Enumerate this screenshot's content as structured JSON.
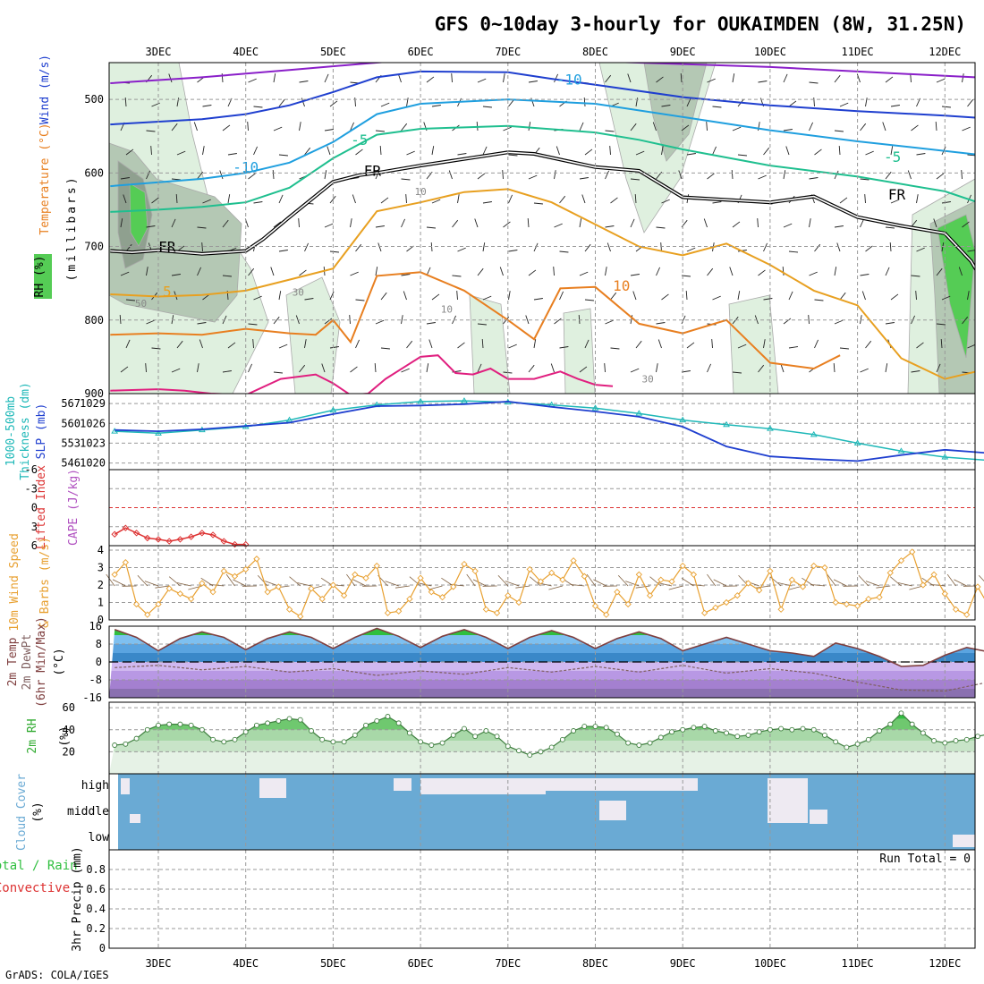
{
  "title": "GFS 0~10day 3-hourly for OUKAIMDEN (8W, 31.25N)",
  "footer": "GrADS: COLA/IGES",
  "colors": {
    "rh_light": "#dff0df",
    "rh_mid": "#b4c8b4",
    "rh_dark": "#8fa08f",
    "rh_green": "#55cc55",
    "temp_lines": [
      "#8a1fc9",
      "#1f3fcf",
      "#1f9fdf",
      "#1fbf8f",
      "#000000",
      "#e8a020",
      "#e87f20",
      "#e01f7f"
    ],
    "slp": "#1f3fcf",
    "thickness": "#1fb8b8",
    "lifted_index": "#dd3333",
    "wind": "#e8a030",
    "temp": "#7f3f3f",
    "dewpt": "#7f5f5f",
    "rh2m": "#2faa2f",
    "cloud": "#6aaad4"
  },
  "dates": [
    "3DEC",
    "4DEC",
    "5DEC",
    "6DEC",
    "7DEC",
    "8DEC",
    "9DEC",
    "10DEC",
    "11DEC",
    "12DEC"
  ],
  "chart_data": [
    {
      "type": "line",
      "name": "upper_air",
      "ylabels": [
        "Wind (m/s)",
        "Temperature (°C)",
        "RH (%)",
        "(millibars)"
      ],
      "ylim": [
        900,
        450
      ],
      "yticks": [
        500,
        600,
        700,
        800,
        900
      ],
      "annotations": [
        {
          "text": "-10",
          "x": 1.0,
          "y": 599
        },
        {
          "text": "-10",
          "x": 4.7,
          "y": 480
        },
        {
          "text": "-5",
          "x": 2.3,
          "y": 562
        },
        {
          "text": "-5",
          "x": 8.4,
          "y": 585
        },
        {
          "text": "FR",
          "x": 0.1,
          "y": 707
        },
        {
          "text": "FR",
          "x": 2.45,
          "y": 604
        },
        {
          "text": "FR",
          "x": 8.45,
          "y": 636
        },
        {
          "text": "5",
          "x": 0.1,
          "y": 768
        },
        {
          "text": "10",
          "x": 5.3,
          "y": 760
        },
        {
          "text": "50",
          "x": -0.2,
          "y": 782
        },
        {
          "text": "30",
          "x": 1.6,
          "y": 767
        },
        {
          "text": "10",
          "x": 3.3,
          "y": 790
        },
        {
          "text": "10",
          "x": 3.0,
          "y": 630
        },
        {
          "text": "30",
          "x": 5.6,
          "y": 885
        }
      ],
      "series": [
        {
          "x": [
            -0.55,
            0.5,
            1.5,
            2.3,
            3.0,
            4.0,
            5.0,
            6.0,
            7.0,
            8.0,
            9.0,
            9.75
          ],
          "y": [
            478,
            470,
            460,
            452,
            445,
            444,
            448,
            452,
            456,
            462,
            468,
            472
          ]
        },
        {
          "x": [
            -0.55,
            0.5,
            1.0,
            1.5,
            2.0,
            2.5,
            3.0,
            4.0,
            4.5,
            5.0,
            6.0,
            7.0,
            8.0,
            9.0,
            9.75
          ],
          "y": [
            534,
            527,
            520,
            508,
            490,
            470,
            462,
            463,
            472,
            480,
            497,
            508,
            516,
            522,
            528
          ]
        },
        {
          "x": [
            -0.55,
            0.5,
            1.0,
            1.5,
            2.0,
            2.5,
            3.0,
            4.0,
            5.0,
            6.0,
            7.0,
            8.0,
            9.0,
            9.75
          ],
          "y": [
            618,
            608,
            600,
            586,
            558,
            520,
            506,
            500,
            506,
            524,
            542,
            557,
            570,
            580
          ]
        },
        {
          "x": [
            -0.55,
            0.0,
            0.5,
            1.0,
            1.5,
            2.0,
            2.5,
            3.0,
            4.0,
            5.0,
            5.5,
            6.0,
            7.0,
            8.0,
            9.0,
            9.5,
            9.75
          ],
          "y": [
            653,
            650,
            646,
            640,
            620,
            580,
            548,
            540,
            536,
            545,
            555,
            568,
            590,
            605,
            625,
            645,
            670
          ]
        },
        {
          "x": [
            -0.55,
            -0.3,
            0.0,
            0.5,
            1.0,
            1.2,
            1.5,
            2.0,
            2.3,
            2.5,
            3.0,
            4.0,
            4.3,
            5.0,
            5.5,
            6.0,
            7.0,
            7.5,
            8.0,
            8.5,
            9.0,
            9.3,
            9.5,
            9.7,
            9.75
          ],
          "y": [
            706,
            708,
            705,
            710,
            706,
            690,
            660,
            612,
            603,
            600,
            590,
            572,
            574,
            592,
            597,
            633,
            640,
            632,
            660,
            672,
            682,
            720,
            760,
            785,
            790
          ]
        },
        {
          "x": [
            -0.55,
            0.0,
            0.5,
            1.0,
            1.5,
            2.0,
            2.5,
            3.0,
            3.5,
            4.0,
            4.5,
            5.0,
            5.5,
            6.0,
            6.5,
            7.0,
            7.5,
            8.0,
            8.5,
            9.0,
            9.5,
            9.75
          ],
          "y": [
            765,
            768,
            766,
            760,
            745,
            730,
            652,
            640,
            626,
            622,
            640,
            670,
            700,
            712,
            696,
            725,
            760,
            780,
            852,
            880,
            866,
            858
          ]
        },
        {
          "x": [
            -0.55,
            0.0,
            0.5,
            1.0,
            1.5,
            1.8,
            2.0,
            2.2,
            2.5,
            3.0,
            3.5,
            4.0,
            4.3,
            4.6,
            5.0,
            5.5,
            6.0,
            6.5,
            7.0,
            7.5,
            7.8
          ],
          "y": [
            820,
            818,
            820,
            812,
            818,
            820,
            800,
            830,
            740,
            735,
            760,
            800,
            826,
            757,
            755,
            805,
            818,
            800,
            858,
            866,
            848
          ]
        },
        {
          "x": [
            -0.55,
            0.0,
            0.3,
            0.6,
            1.0,
            1.4,
            1.8,
            2.0,
            2.2,
            2.4,
            2.6,
            2.8,
            3.0,
            3.2,
            3.4,
            3.6,
            3.8,
            4.0,
            4.3,
            4.6,
            4.8,
            5.0,
            5.2
          ],
          "y": [
            896,
            894,
            896,
            900,
            902,
            880,
            874,
            886,
            902,
            900,
            880,
            865,
            850,
            848,
            872,
            874,
            866,
            880,
            880,
            870,
            880,
            888,
            890
          ]
        }
      ]
    },
    {
      "type": "line",
      "name": "slp_thickness",
      "ylabels": [
        "1000-500mb Thickness (dm)",
        "SLP (mb)"
      ],
      "left_ticks": [
        546,
        553,
        560,
        567
      ],
      "right_ticks": [
        1020,
        1023,
        1026,
        1029
      ],
      "ylim": [
        1019,
        1030.5
      ],
      "series": [
        {
          "name": "SLP",
          "x": [
            -0.5,
            0.0,
            0.5,
            1.0,
            1.5,
            2.0,
            2.5,
            3.0,
            3.5,
            4.0,
            4.5,
            5.0,
            5.5,
            6.0,
            6.5,
            7.0,
            7.5,
            8.0,
            8.5,
            9.0,
            9.5,
            9.75
          ],
          "y": [
            1025.0,
            1024.8,
            1025.1,
            1025.6,
            1026.1,
            1027.4,
            1028.6,
            1028.7,
            1028.9,
            1029.3,
            1028.5,
            1027.8,
            1027.0,
            1025.5,
            1022.5,
            1021.0,
            1020.6,
            1020.3,
            1021.2,
            1022.0,
            1021.5,
            1021.1
          ]
        },
        {
          "name": "Thickness",
          "x": [
            -0.5,
            0.0,
            0.5,
            1.0,
            1.5,
            2.0,
            2.5,
            3.0,
            3.5,
            4.0,
            4.5,
            5.0,
            5.5,
            6.0,
            6.5,
            7.0,
            7.5,
            8.0,
            8.5,
            9.0,
            9.5,
            9.75
          ],
          "y": [
            1024.8,
            1024.5,
            1025.0,
            1025.5,
            1026.5,
            1028.0,
            1028.8,
            1029.3,
            1029.4,
            1029.2,
            1028.8,
            1028.3,
            1027.5,
            1026.5,
            1025.8,
            1025.2,
            1024.3,
            1023.0,
            1021.8,
            1020.9,
            1020.4,
            1020.0
          ]
        }
      ]
    },
    {
      "type": "line",
      "name": "stability",
      "ylabels": [
        "Lifted Index",
        "CAPE (J/kg)"
      ],
      "left_ticks": [
        -6,
        -3,
        0,
        3,
        6
      ],
      "ylim": [
        -6,
        6
      ],
      "series": [
        {
          "name": "Lifted Index",
          "x": [
            -0.5,
            -0.375,
            -0.25,
            -0.125,
            0.0,
            0.125,
            0.25,
            0.375,
            0.5,
            0.625,
            0.75,
            0.875,
            1.0
          ],
          "y": [
            4.2,
            3.2,
            4.0,
            4.8,
            5.0,
            5.3,
            5.0,
            4.6,
            4.0,
            4.3,
            5.3,
            5.8,
            5.8
          ]
        }
      ]
    },
    {
      "type": "line",
      "name": "wind10m",
      "ylabels": [
        "10m Wind Speed",
        "& Barbs (m/s)"
      ],
      "left_ticks": [
        0,
        1,
        2,
        3,
        4
      ],
      "ylim": [
        0,
        4
      ],
      "series": [
        {
          "name": "Wind speed",
          "x0": -0.5,
          "dx": 0.125,
          "y": [
            2.6,
            3.3,
            0.9,
            0.3,
            0.9,
            1.8,
            1.5,
            1.2,
            2.1,
            1.6,
            2.8,
            2.5,
            2.9,
            3.5,
            1.6,
            1.9,
            0.6,
            0.2,
            1.8,
            1.2,
            2.0,
            1.4,
            2.6,
            2.4,
            3.1,
            0.4,
            0.5,
            1.2,
            2.4,
            1.6,
            1.3,
            1.9,
            3.2,
            2.8,
            0.6,
            0.4,
            1.4,
            1.0,
            2.9,
            2.2,
            2.7,
            2.3,
            3.4,
            2.5,
            0.8,
            0.3,
            1.6,
            0.9,
            2.6,
            1.4,
            2.3,
            2.2,
            3.1,
            2.6,
            0.4,
            0.7,
            1.0,
            1.4,
            2.1,
            1.7,
            2.8,
            0.6,
            2.3,
            1.9,
            3.1,
            3.0,
            1.0,
            0.9,
            0.8,
            1.2,
            1.3,
            2.7,
            3.4,
            3.9,
            2.0,
            2.6,
            1.5,
            0.6,
            0.3,
            1.9,
            0.8,
            0.3,
            1.9,
            2.4,
            3.1,
            3.4,
            2.6,
            1.2,
            1.3,
            1.1,
            1.0,
            0.6,
            1.4,
            1.5,
            3.2,
            3.3,
            2.2,
            0.3,
            0.6,
            0.9,
            1.2,
            1.4,
            1.1,
            1.3,
            1.1,
            1.2,
            1.0,
            1.1,
            1.2
          ]
        }
      ]
    },
    {
      "type": "area",
      "name": "temp2m",
      "ylabels": [
        "2m Temp",
        "2m DewPt",
        "(6hr Min/Max)",
        "(°C)"
      ],
      "left_ticks": [
        -16,
        -8,
        0,
        8,
        16
      ],
      "ylim": [
        -16,
        16
      ],
      "series": [
        {
          "name": "Temperature",
          "x": [
            -0.5,
            -0.25,
            0.0,
            0.25,
            0.5,
            0.75,
            1.0,
            1.25,
            1.5,
            1.75,
            2.0,
            2.25,
            2.5,
            2.75,
            3.0,
            3.25,
            3.5,
            3.75,
            4.0,
            4.25,
            4.5,
            4.75,
            5.0,
            5.25,
            5.5,
            5.75,
            6.0,
            6.25,
            6.5,
            6.75,
            7.0,
            7.25,
            7.5,
            7.75,
            8.0,
            8.25,
            8.5,
            8.75,
            9.0,
            9.25,
            9.5,
            9.75
          ],
          "y": [
            14.5,
            11.0,
            5.0,
            10.5,
            13.5,
            11.0,
            5.5,
            10.5,
            13.5,
            11.0,
            6.0,
            11.0,
            15.0,
            11.5,
            6.5,
            11.5,
            14.5,
            11.0,
            6.0,
            11.0,
            14.0,
            11.0,
            6.0,
            10.5,
            13.5,
            10.5,
            5.0,
            8.0,
            11.0,
            8.0,
            5.0,
            4.0,
            2.5,
            8.5,
            6.0,
            2.5,
            -2.0,
            -1.5,
            3.0,
            6.5,
            4.5,
            1.5
          ]
        },
        {
          "name": "DewPt",
          "x": [
            -0.5,
            0.0,
            0.5,
            1.0,
            1.5,
            2.0,
            2.5,
            3.0,
            3.5,
            4.0,
            4.5,
            5.0,
            5.5,
            6.0,
            6.5,
            7.0,
            7.5,
            8.0,
            8.5,
            9.0,
            9.5,
            9.75
          ],
          "y": [
            -2.5,
            -1.5,
            -3.5,
            -2.0,
            -4.5,
            -3.0,
            -6.0,
            -4.0,
            -5.5,
            -2.5,
            -4.5,
            -2.0,
            -4.5,
            -1.5,
            -5.0,
            -3.0,
            -5.0,
            -9.0,
            -12.5,
            -13.0,
            -9.0,
            -5.0
          ]
        }
      ]
    },
    {
      "type": "area",
      "name": "rh2m",
      "ylabels": [
        "2m RH",
        "(%)"
      ],
      "left_ticks": [
        20,
        40,
        60
      ],
      "ylim": [
        0,
        65
      ],
      "series": [
        {
          "name": "RH",
          "x0": -0.5,
          "dx": 0.125,
          "y": [
            26,
            27,
            32,
            40,
            44,
            45,
            45,
            44,
            40,
            31,
            29,
            31,
            38,
            44,
            46,
            48,
            50,
            49,
            39,
            31,
            29,
            29,
            35,
            44,
            48,
            52,
            46,
            37,
            29,
            26,
            28,
            35,
            41,
            34,
            39,
            34,
            25,
            21,
            17,
            20,
            24,
            31,
            39,
            43,
            43,
            42,
            36,
            28,
            26,
            28,
            33,
            38,
            40,
            42,
            43,
            39,
            37,
            34,
            35,
            38,
            40,
            41,
            40,
            41,
            40,
            35,
            29,
            24,
            27,
            31,
            39,
            45,
            55,
            45,
            37,
            30,
            28,
            30,
            31,
            34,
            36,
            38,
            38,
            37,
            30,
            26,
            25,
            27,
            34,
            48,
            58,
            62,
            61
          ]
        }
      ]
    },
    {
      "type": "area",
      "name": "cloud_cover",
      "ylabels": [
        "Cloud Cover",
        "(%)"
      ],
      "categories": [
        "high",
        "middle",
        "low"
      ]
    },
    {
      "type": "line",
      "name": "precip",
      "ylabels": [
        "Total / Rain",
        "Convective",
        "3hr Precip (mm)"
      ],
      "left_ticks": [
        0,
        0.2,
        0.4,
        0.6,
        0.8
      ],
      "ylim": [
        0,
        1
      ],
      "annotation": "Run Total = 0"
    }
  ]
}
